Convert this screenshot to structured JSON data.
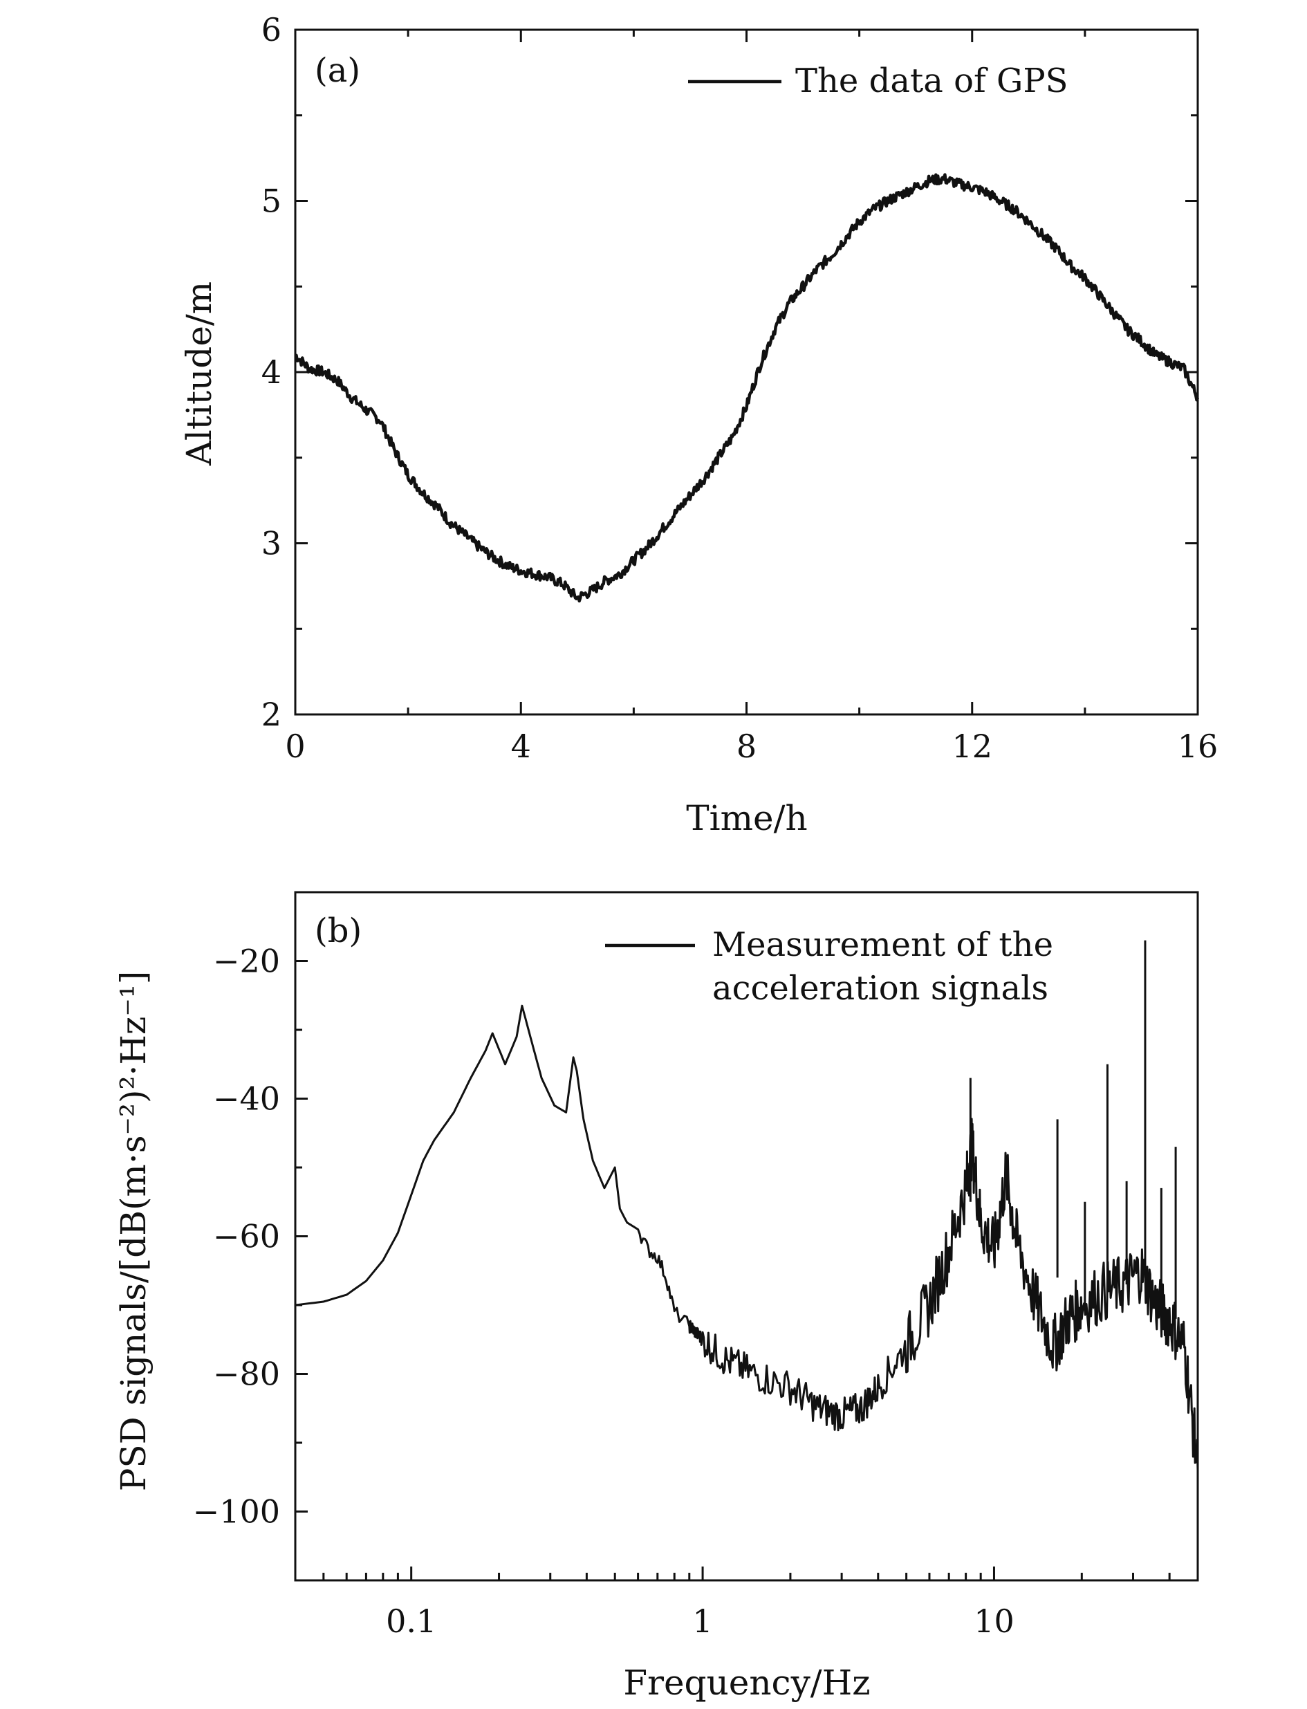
{
  "chart_data": [
    {
      "panel_label": "(a)",
      "type": "line",
      "xlabel": "Time/h",
      "ylabel": "Altitude/m",
      "xlim": [
        0,
        16
      ],
      "ylim": [
        2,
        6
      ],
      "x_scale": "linear",
      "x_ticks": [
        0,
        4,
        8,
        12,
        16
      ],
      "x_tick_labels": [
        "0",
        "4",
        "8",
        "12",
        "16"
      ],
      "y_ticks": [
        2,
        3,
        4,
        5,
        6
      ],
      "y_tick_labels": [
        "2",
        "3",
        "4",
        "5",
        "6"
      ],
      "grid": false,
      "legend_position": "top-right",
      "line_color": "#111111",
      "series": [
        {
          "name": "The data of GPS",
          "x": [
            0,
            0.25,
            0.5,
            0.75,
            1.0,
            1.25,
            1.5,
            1.75,
            2.0,
            2.25,
            2.5,
            2.75,
            3.0,
            3.25,
            3.5,
            3.75,
            4.0,
            4.25,
            4.5,
            4.75,
            5.0,
            5.25,
            5.5,
            5.75,
            6.0,
            6.25,
            6.5,
            6.75,
            7.0,
            7.25,
            7.5,
            7.75,
            8.0,
            8.25,
            8.5,
            8.75,
            9.0,
            9.25,
            9.5,
            9.75,
            10.0,
            10.25,
            10.5,
            10.75,
            11.0,
            11.25,
            11.5,
            11.75,
            12.0,
            12.25,
            12.5,
            12.75,
            13.0,
            13.25,
            13.5,
            13.75,
            14.0,
            14.25,
            14.5,
            14.75,
            15.0,
            15.25,
            15.5,
            15.75,
            16.0
          ],
          "y": [
            4.1,
            4.02,
            4.0,
            3.95,
            3.85,
            3.78,
            3.72,
            3.55,
            3.4,
            3.3,
            3.22,
            3.12,
            3.05,
            2.98,
            2.92,
            2.87,
            2.84,
            2.82,
            2.8,
            2.76,
            2.68,
            2.72,
            2.78,
            2.82,
            2.9,
            2.98,
            3.08,
            3.18,
            3.28,
            3.38,
            3.5,
            3.62,
            3.8,
            4.05,
            4.25,
            4.4,
            4.5,
            4.6,
            4.68,
            4.78,
            4.88,
            4.95,
            5.0,
            5.04,
            5.08,
            5.12,
            5.13,
            5.1,
            5.08,
            5.05,
            5.0,
            4.95,
            4.88,
            4.8,
            4.72,
            4.62,
            4.55,
            4.45,
            4.35,
            4.25,
            4.18,
            4.1,
            4.06,
            4.02,
            3.85
          ]
        }
      ]
    },
    {
      "panel_label": "(b)",
      "type": "line",
      "xlabel": "Frequency/Hz",
      "ylabel": "PSD signals/[dB(m·s⁻²)²·Hz⁻¹]",
      "xlim": [
        0.04,
        50
      ],
      "ylim": [
        -110,
        -10
      ],
      "x_scale": "log",
      "x_ticks": [
        0.1,
        1,
        10
      ],
      "x_tick_labels": [
        "0.1",
        "1",
        "10"
      ],
      "y_ticks": [
        -20,
        -40,
        -60,
        -80,
        -100
      ],
      "y_tick_labels": [
        "−20",
        "−40",
        "−60",
        "−80",
        "−100"
      ],
      "grid": false,
      "legend_position": "top-right",
      "line_color": "#111111",
      "series": [
        {
          "name": "Measurement of the acceleration signals",
          "x": [
            0.04,
            0.05,
            0.06,
            0.07,
            0.08,
            0.09,
            0.1,
            0.11,
            0.12,
            0.14,
            0.16,
            0.18,
            0.19,
            0.21,
            0.23,
            0.24,
            0.26,
            0.28,
            0.31,
            0.34,
            0.36,
            0.37,
            0.39,
            0.42,
            0.46,
            0.5,
            0.52,
            0.55,
            0.6,
            0.65,
            0.7,
            0.75,
            0.8,
            0.9,
            0.95,
            1.0,
            1.2,
            1.5,
            2.0,
            2.5,
            3.0,
            3.5,
            4.0,
            5.0,
            6.0,
            7.0,
            8.0,
            8.4,
            9.0,
            10.0,
            11.0,
            12.0,
            14.0,
            16.0,
            18.0,
            20.0,
            24.0,
            28.0,
            32.0,
            36.0,
            40.0,
            45.0,
            50.0
          ],
          "y": [
            -70,
            -69.5,
            -68.5,
            -66.5,
            -63.5,
            -59.5,
            -54,
            -49,
            -46,
            -42,
            -37,
            -33,
            -30.5,
            -35,
            -31,
            -26.5,
            -32,
            -37,
            -41,
            -42,
            -34,
            -36,
            -43,
            -49,
            -53,
            -50,
            -56,
            -58,
            -59,
            -62,
            -63,
            -66,
            -71,
            -73,
            -74,
            -75,
            -78,
            -80,
            -82,
            -85,
            -86,
            -85,
            -82,
            -76,
            -70,
            -62,
            -53,
            -47,
            -58,
            -62,
            -51,
            -61,
            -70,
            -76,
            -72,
            -70,
            -68,
            -67,
            -65,
            -70,
            -72,
            -76,
            -94
          ]
        }
      ]
    }
  ]
}
